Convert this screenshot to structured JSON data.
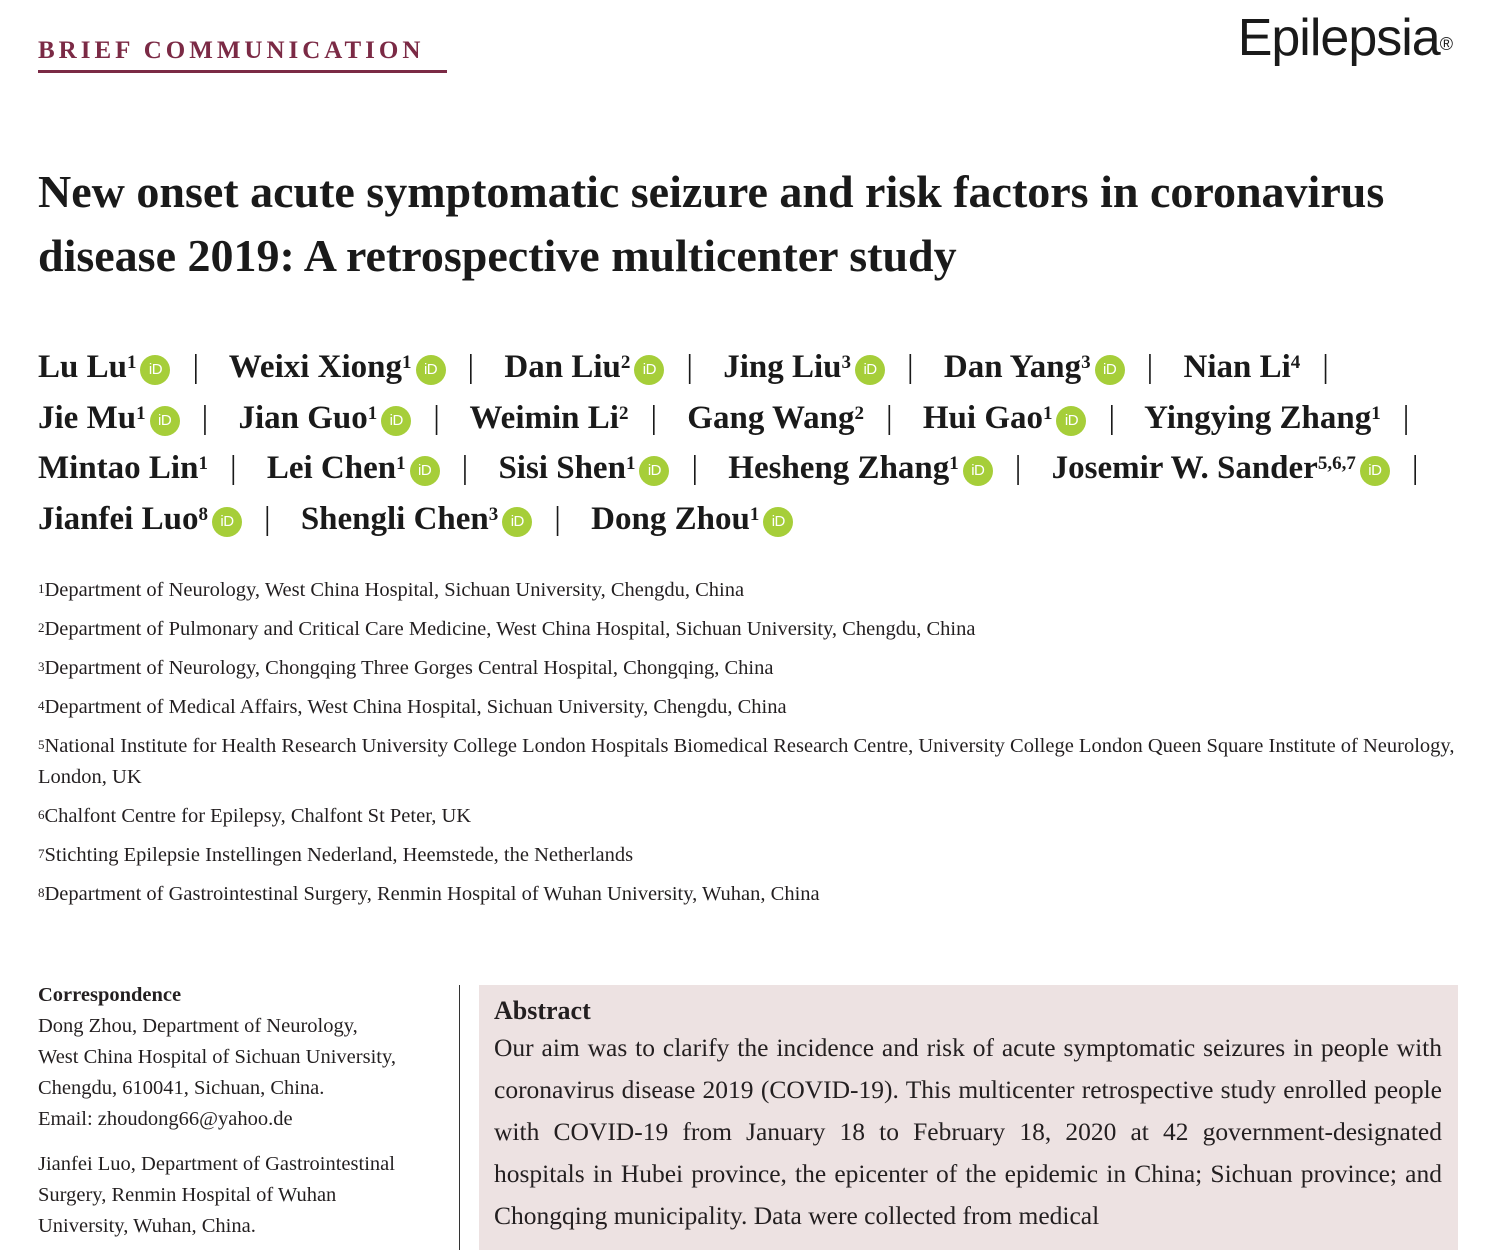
{
  "header": {
    "section_label": "BRIEF COMMUNICATION",
    "journal_logo": "Epilepsia",
    "journal_logo_mark": "®"
  },
  "title": "New onset acute symptomatic seizure and risk factors in coronavirus disease 2019: A retrospective multicenter study",
  "orcid_label": "iD",
  "separator": "|",
  "authors": [
    {
      "name": "Lu Lu",
      "sup": "1",
      "orcid": true
    },
    {
      "name": "Weixi Xiong",
      "sup": "1",
      "orcid": true
    },
    {
      "name": "Dan Liu",
      "sup": "2",
      "orcid": true
    },
    {
      "name": "Jing Liu",
      "sup": "3",
      "orcid": true
    },
    {
      "name": "Dan Yang",
      "sup": "3",
      "orcid": true
    },
    {
      "name": "Nian Li",
      "sup": "4",
      "orcid": false
    },
    {
      "name": "Jie Mu",
      "sup": "1",
      "orcid": true
    },
    {
      "name": "Jian Guo",
      "sup": "1",
      "orcid": true
    },
    {
      "name": "Weimin Li",
      "sup": "2",
      "orcid": false
    },
    {
      "name": "Gang Wang",
      "sup": "2",
      "orcid": false
    },
    {
      "name": "Hui Gao",
      "sup": "1",
      "orcid": true
    },
    {
      "name": "Yingying Zhang",
      "sup": "1",
      "orcid": false
    },
    {
      "name": "Mintao Lin",
      "sup": "1",
      "orcid": false
    },
    {
      "name": "Lei Chen",
      "sup": "1",
      "orcid": true
    },
    {
      "name": "Sisi Shen",
      "sup": "1",
      "orcid": true
    },
    {
      "name": "Hesheng Zhang",
      "sup": "1",
      "orcid": true
    },
    {
      "name": "Josemir W. Sander",
      "sup": "5,6,7",
      "orcid": true
    },
    {
      "name": "Jianfei Luo",
      "sup": "8",
      "orcid": true
    },
    {
      "name": "Shengli Chen",
      "sup": "3",
      "orcid": true
    },
    {
      "name": "Dong Zhou",
      "sup": "1",
      "orcid": true
    }
  ],
  "affiliations": [
    {
      "sup": "1",
      "text": "Department of Neurology, West China Hospital, Sichuan University, Chengdu, China"
    },
    {
      "sup": "2",
      "text": "Department of Pulmonary and Critical Care Medicine, West China Hospital, Sichuan University, Chengdu, China"
    },
    {
      "sup": "3",
      "text": "Department of Neurology, Chongqing Three Gorges Central Hospital, Chongqing, China"
    },
    {
      "sup": "4",
      "text": "Department of Medical Affairs, West China Hospital, Sichuan University, Chengdu, China"
    },
    {
      "sup": "5",
      "text": "National Institute for Health Research University College London Hospitals Biomedical Research Centre, University College London Queen Square Institute of Neurology, London, UK"
    },
    {
      "sup": "6",
      "text": "Chalfont Centre for Epilepsy, Chalfont St Peter, UK"
    },
    {
      "sup": "7",
      "text": "Stichting Epilepsie Instellingen Nederland, Heemstede, the Netherlands"
    },
    {
      "sup": "8",
      "text": "Department of Gastrointestinal Surgery, Renmin Hospital of Wuhan University, Wuhan, China"
    }
  ],
  "correspondence": {
    "heading": "Correspondence",
    "contacts": [
      {
        "lines": [
          "Dong Zhou, Department of Neurology,",
          "West China Hospital of Sichuan University,",
          "Chengdu, 610041, Sichuan, China.",
          "Email: zhoudong66@yahoo.de"
        ]
      },
      {
        "lines": [
          "Jianfei Luo, Department of Gastrointestinal",
          "Surgery, Renmin Hospital of Wuhan",
          "University, Wuhan, China."
        ]
      }
    ]
  },
  "abstract": {
    "heading": "Abstract",
    "text": "Our aim was to clarify the incidence and risk of acute symptomatic seizures in people with coronavirus disease 2019 (COVID-19). This multicenter retrospective study enrolled people with COVID-19 from January 18 to February 18, 2020 at 42 government-designated hospitals in Hubei province, the epicenter of the epidemic in China; Sichuan province; and Chongqing municipality. Data were collected from medical"
  }
}
